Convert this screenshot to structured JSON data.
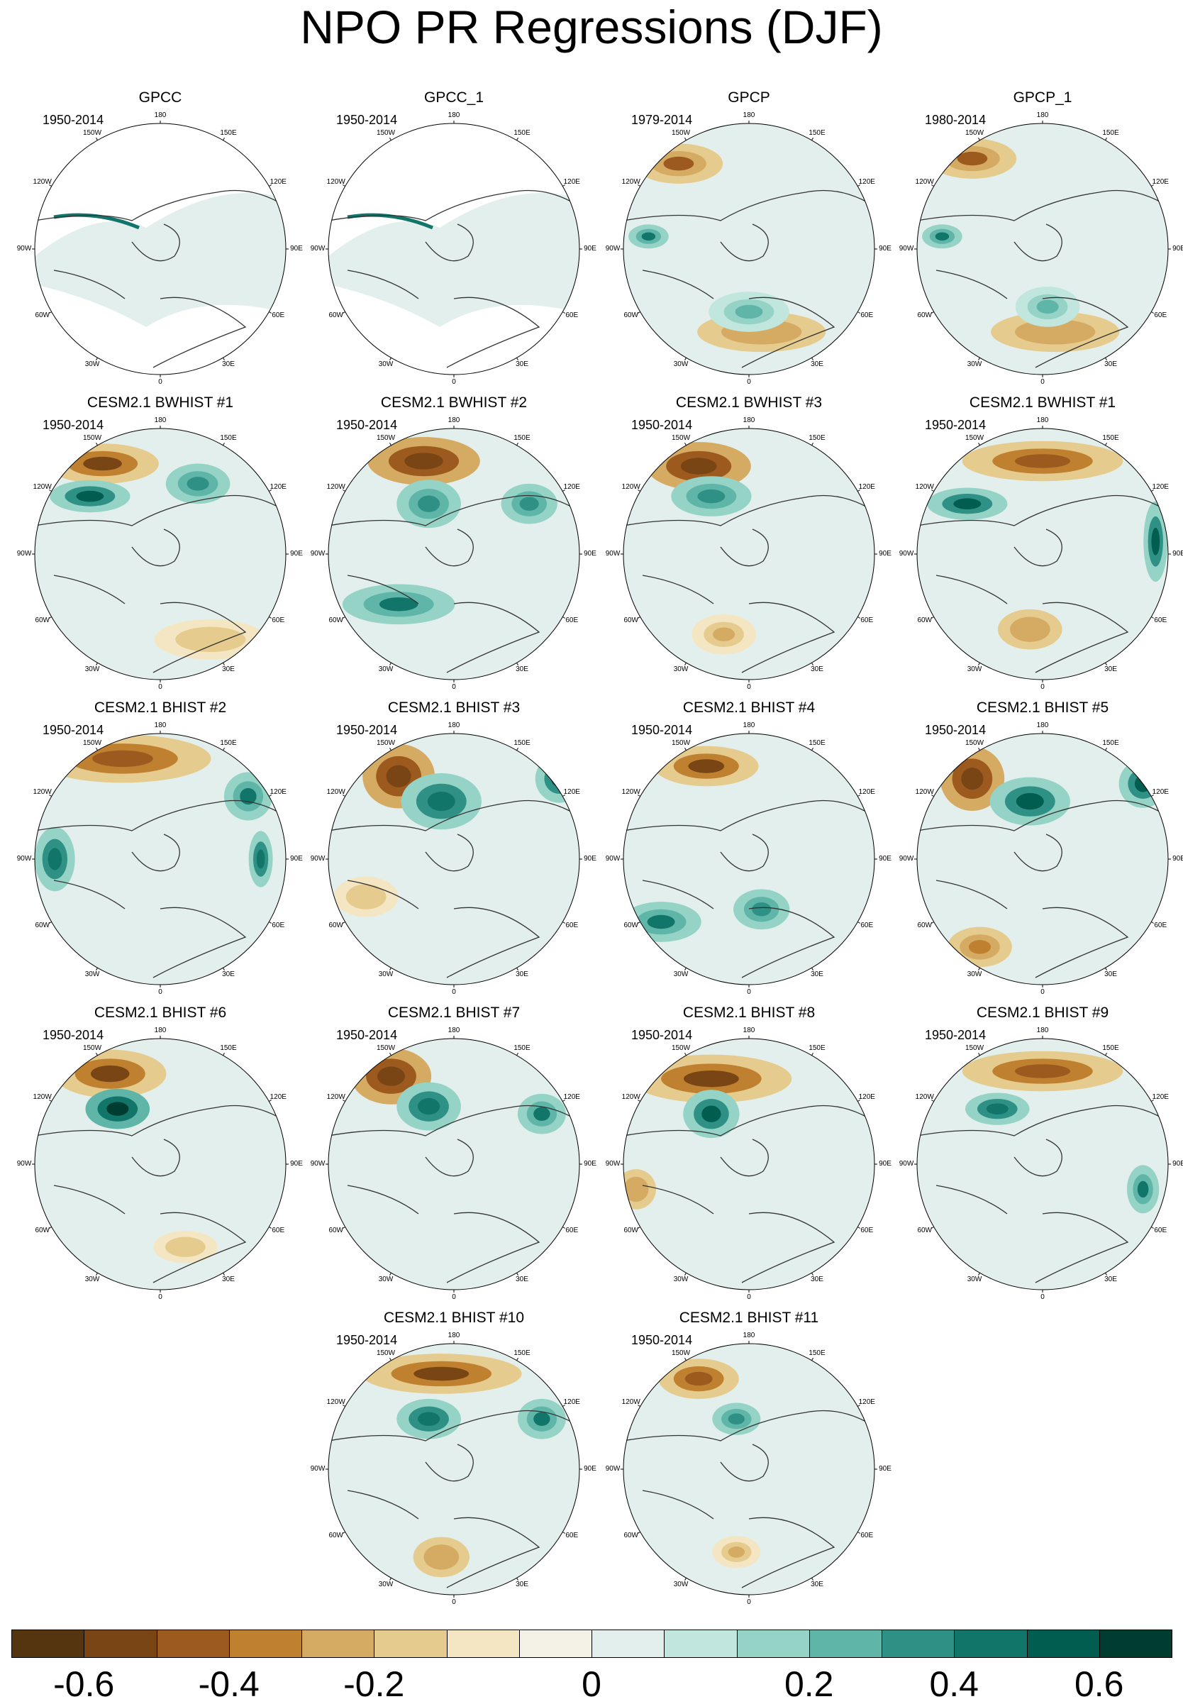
{
  "title": "NPO PR Regressions (DJF)",
  "meridian_labels": {
    "top": "180",
    "top_left": "150W",
    "top_right": "150E",
    "upper_left": "120W",
    "upper_right": "120E",
    "left": "90W",
    "right": "90E",
    "lower_left": "60W",
    "lower_right": "60E",
    "bottom_left": "30W",
    "bottom_right": "30E",
    "bottom": "0"
  },
  "panels": [
    {
      "title": "GPCC",
      "period": "1950-2014",
      "pattern": {
        "sig": -0.05,
        "blobs": [],
        "missing": true
      }
    },
    {
      "title": "GPCC_1",
      "period": "1950-2014",
      "pattern": {
        "sig": -0.05,
        "blobs": [],
        "missing": true
      }
    },
    {
      "title": "GPCP",
      "period": "1979-2014",
      "pattern": {
        "sig": -0.35,
        "blobs": [
          [
            0.22,
            0.16,
            0.11,
            0.05,
            -0.42
          ],
          [
            0.1,
            0.45,
            0.05,
            0.03,
            0.4
          ],
          [
            0.55,
            0.83,
            0.16,
            0.05,
            -0.3
          ],
          [
            0.5,
            0.75,
            0.1,
            0.05,
            0.2
          ]
        ]
      }
    },
    {
      "title": "GPCP_1",
      "period": "1980-2014",
      "pattern": {
        "sig": -0.35,
        "blobs": [
          [
            0.22,
            0.14,
            0.11,
            0.05,
            -0.42
          ],
          [
            0.1,
            0.45,
            0.05,
            0.03,
            0.4
          ],
          [
            0.55,
            0.83,
            0.16,
            0.05,
            -0.3
          ],
          [
            0.52,
            0.73,
            0.08,
            0.05,
            0.25
          ]
        ]
      }
    },
    {
      "title": "CESM2.1 BWHIST #1",
      "period": "1950-2014",
      "pattern": {
        "sig": -0.6,
        "blobs": [
          [
            0.27,
            0.14,
            0.14,
            0.05,
            -0.55
          ],
          [
            0.22,
            0.27,
            0.1,
            0.04,
            0.55
          ],
          [
            0.65,
            0.22,
            0.08,
            0.05,
            0.3
          ],
          [
            0.7,
            0.84,
            0.14,
            0.05,
            -0.2
          ]
        ]
      }
    },
    {
      "title": "CESM2.1 BWHIST #2",
      "period": "1950-2014",
      "pattern": {
        "sig": -0.65,
        "blobs": [
          [
            0.38,
            0.13,
            0.14,
            0.06,
            -0.6
          ],
          [
            0.4,
            0.3,
            0.08,
            0.06,
            0.35
          ],
          [
            0.28,
            0.7,
            0.14,
            0.05,
            0.4
          ],
          [
            0.8,
            0.3,
            0.07,
            0.05,
            0.35
          ]
        ]
      }
    },
    {
      "title": "CESM2.1 BWHIST #3",
      "period": "1950-2014",
      "pattern": {
        "sig": -0.65,
        "blobs": [
          [
            0.3,
            0.15,
            0.13,
            0.06,
            -0.6
          ],
          [
            0.35,
            0.27,
            0.1,
            0.05,
            0.3
          ],
          [
            0.4,
            0.82,
            0.08,
            0.05,
            -0.25
          ]
        ]
      }
    },
    {
      "title": "CESM2.1 BWHIST #1",
      "period": "1950-2014",
      "pattern": {
        "sig": -0.5,
        "blobs": [
          [
            0.5,
            0.13,
            0.2,
            0.05,
            -0.45
          ],
          [
            0.2,
            0.3,
            0.1,
            0.04,
            0.5
          ],
          [
            0.95,
            0.45,
            0.03,
            0.1,
            0.55
          ],
          [
            0.45,
            0.8,
            0.08,
            0.05,
            -0.3
          ]
        ]
      }
    },
    {
      "title": "CESM2.1 BHIST #2",
      "period": "1950-2014",
      "pattern": {
        "sig": -0.55,
        "blobs": [
          [
            0.35,
            0.1,
            0.22,
            0.06,
            -0.5
          ],
          [
            0.08,
            0.5,
            0.05,
            0.08,
            0.45
          ],
          [
            0.85,
            0.25,
            0.06,
            0.06,
            0.4
          ],
          [
            0.9,
            0.5,
            0.03,
            0.07,
            0.45
          ]
        ]
      }
    },
    {
      "title": "CESM2.1 BHIST #3",
      "period": "1950-2014",
      "pattern": {
        "sig": -0.65,
        "blobs": [
          [
            0.28,
            0.17,
            0.09,
            0.08,
            -0.6
          ],
          [
            0.45,
            0.27,
            0.1,
            0.07,
            0.45
          ],
          [
            0.92,
            0.18,
            0.06,
            0.06,
            0.5
          ],
          [
            0.15,
            0.65,
            0.08,
            0.05,
            -0.2
          ]
        ]
      }
    },
    {
      "title": "CESM2.1 BHIST #4",
      "period": "1950-2014",
      "pattern": {
        "sig": -0.6,
        "blobs": [
          [
            0.33,
            0.13,
            0.13,
            0.05,
            -0.55
          ],
          [
            0.15,
            0.75,
            0.1,
            0.05,
            0.4
          ],
          [
            0.55,
            0.7,
            0.07,
            0.05,
            0.35
          ]
        ]
      }
    },
    {
      "title": "CESM2.1 BHIST #5",
      "period": "1950-2014",
      "pattern": {
        "sig": -0.65,
        "blobs": [
          [
            0.22,
            0.18,
            0.08,
            0.08,
            -0.6
          ],
          [
            0.45,
            0.27,
            0.1,
            0.06,
            0.5
          ],
          [
            0.9,
            0.2,
            0.06,
            0.06,
            0.5
          ],
          [
            0.25,
            0.85,
            0.08,
            0.05,
            -0.35
          ]
        ]
      }
    },
    {
      "title": "CESM2.1 BHIST #6",
      "period": "1950-2014",
      "pattern": {
        "sig": -0.6,
        "blobs": [
          [
            0.3,
            0.14,
            0.14,
            0.06,
            -0.55
          ],
          [
            0.33,
            0.28,
            0.08,
            0.05,
            0.6
          ],
          [
            0.6,
            0.83,
            0.08,
            0.04,
            -0.2
          ]
        ]
      }
    },
    {
      "title": "CESM2.1 BHIST #7",
      "period": "1950-2014",
      "pattern": {
        "sig": -0.65,
        "blobs": [
          [
            0.25,
            0.15,
            0.1,
            0.07,
            -0.6
          ],
          [
            0.4,
            0.27,
            0.08,
            0.06,
            0.45
          ],
          [
            0.85,
            0.3,
            0.06,
            0.05,
            0.4
          ]
        ]
      }
    },
    {
      "title": "CESM2.1 BHIST #8",
      "period": "1950-2014",
      "pattern": {
        "sig": -0.6,
        "blobs": [
          [
            0.35,
            0.16,
            0.2,
            0.06,
            -0.55
          ],
          [
            0.35,
            0.3,
            0.07,
            0.06,
            0.5
          ],
          [
            0.05,
            0.6,
            0.05,
            0.05,
            -0.3
          ]
        ]
      }
    },
    {
      "title": "CESM2.1 BHIST #9",
      "period": "1950-2014",
      "pattern": {
        "sig": -0.55,
        "blobs": [
          [
            0.5,
            0.13,
            0.2,
            0.05,
            -0.5
          ],
          [
            0.32,
            0.28,
            0.08,
            0.04,
            0.45
          ],
          [
            0.9,
            0.6,
            0.04,
            0.06,
            0.4
          ]
        ]
      }
    },
    {
      "title": "CESM2.1 BHIST #10",
      "period": "1950-2014",
      "pattern": {
        "sig": -0.6,
        "blobs": [
          [
            0.45,
            0.12,
            0.2,
            0.05,
            -0.55
          ],
          [
            0.4,
            0.3,
            0.08,
            0.05,
            0.45
          ],
          [
            0.85,
            0.3,
            0.06,
            0.05,
            0.4
          ],
          [
            0.45,
            0.85,
            0.07,
            0.05,
            -0.3
          ]
        ]
      }
    },
    {
      "title": "CESM2.1 BHIST #11",
      "period": "1950-2014",
      "pattern": {
        "sig": -0.45,
        "blobs": [
          [
            0.3,
            0.14,
            0.1,
            0.05,
            -0.45
          ],
          [
            0.45,
            0.3,
            0.06,
            0.04,
            0.35
          ],
          [
            0.45,
            0.83,
            0.06,
            0.04,
            -0.25
          ]
        ]
      }
    }
  ],
  "colorbar": {
    "colors": [
      "#553410",
      "#794515",
      "#9c5a1e",
      "#bf8030",
      "#d5aa63",
      "#e5cb8d",
      "#f4e6c2",
      "#f4f2e6",
      "#e3efec",
      "#c0e6dd",
      "#95d3c6",
      "#5fb5a8",
      "#2f9186",
      "#12756a",
      "#005d4f",
      "#003c2f"
    ],
    "boundaries": [
      -0.7,
      -0.6,
      -0.5,
      -0.4,
      -0.3,
      -0.2,
      -0.1,
      -0.05,
      0,
      0.05,
      0.1,
      0.2,
      0.3,
      0.4,
      0.5,
      0.6,
      0.7
    ],
    "labels": [
      "-0.6",
      "-0.4",
      "-0.2",
      "0",
      "0.2",
      "0.4",
      "0.6"
    ]
  }
}
